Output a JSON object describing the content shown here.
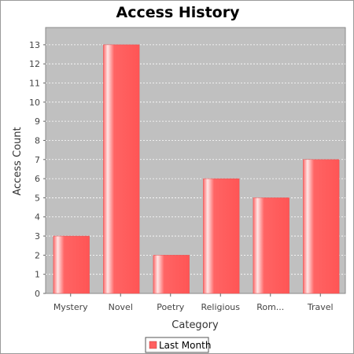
{
  "colors": {
    "plot_background": "#c0c0c0",
    "gridline": "#ffffff",
    "bar_fill": "#ff5f5f",
    "bar_highlight": "#ffe6e6"
  },
  "chart_data": {
    "type": "bar",
    "title": "Access History",
    "xlabel": "Category",
    "ylabel": "Access Count",
    "categories": [
      "Mystery",
      "Novel",
      "Poetry",
      "Religious",
      "Rom...",
      "Travel"
    ],
    "series": [
      {
        "name": "Last Month",
        "values": [
          3,
          13,
          2,
          6,
          5,
          7
        ]
      }
    ],
    "ylim": [
      0,
      13.9
    ],
    "yticks": [
      0,
      1,
      2,
      3,
      4,
      5,
      6,
      7,
      8,
      9,
      10,
      11,
      12,
      13
    ],
    "grid": true,
    "legend_position": "bottom"
  }
}
